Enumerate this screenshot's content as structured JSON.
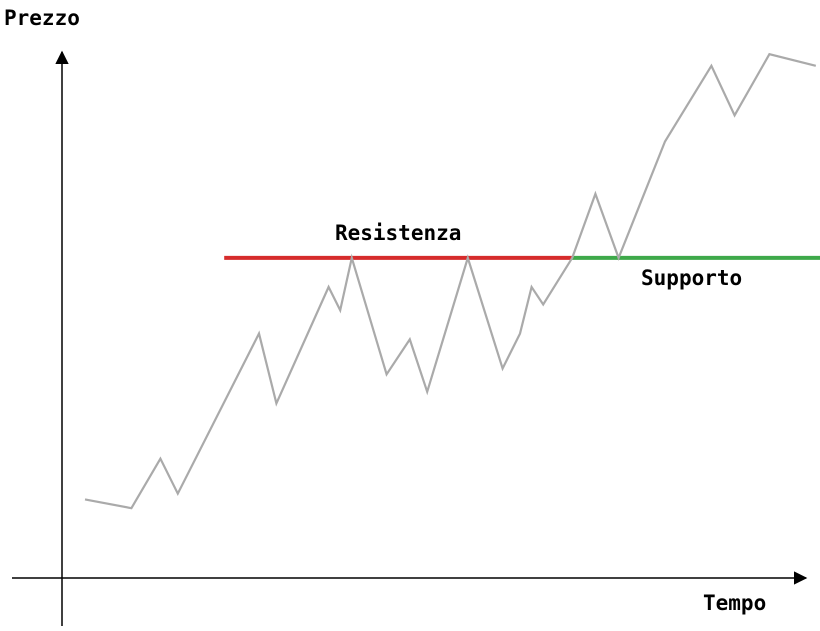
{
  "chart_data": {
    "type": "line",
    "ylabel": "Prezzo",
    "xlabel": "Tempo",
    "grid": false,
    "legend": "none",
    "series": [
      {
        "color": "#aaaaaa",
        "points": [
          [
            0,
            2.7
          ],
          [
            0.4,
            2.4
          ],
          [
            0.65,
            4.1
          ],
          [
            0.8,
            2.9
          ],
          [
            1.5,
            8.4
          ],
          [
            1.65,
            6.0
          ],
          [
            2.1,
            10.0
          ],
          [
            2.2,
            9.2
          ],
          [
            2.3,
            11.0
          ],
          [
            2.6,
            7.0
          ],
          [
            2.8,
            8.2
          ],
          [
            2.95,
            6.4
          ],
          [
            3.3,
            11.0
          ],
          [
            3.6,
            7.2
          ],
          [
            3.75,
            8.4
          ],
          [
            3.85,
            10.0
          ],
          [
            3.95,
            9.4
          ],
          [
            4.2,
            11.0
          ],
          [
            4.4,
            13.2
          ],
          [
            4.6,
            11.0
          ],
          [
            5.0,
            15.0
          ],
          [
            5.4,
            17.6
          ],
          [
            5.6,
            15.9
          ],
          [
            5.9,
            18.0
          ],
          [
            6.3,
            17.6
          ]
        ]
      }
    ],
    "levels": [
      {
        "name": "Resistenza",
        "y": 11.0,
        "x_from": 1.2,
        "x_to": 4.2,
        "color": "#d62c2c"
      },
      {
        "name": "Supporto",
        "y": 11.0,
        "x_from": 4.2,
        "x_to": 6.5,
        "color": "#3ea94a"
      }
    ],
    "xlim": [
      0,
      6.5
    ],
    "ylim": [
      0,
      20
    ]
  }
}
